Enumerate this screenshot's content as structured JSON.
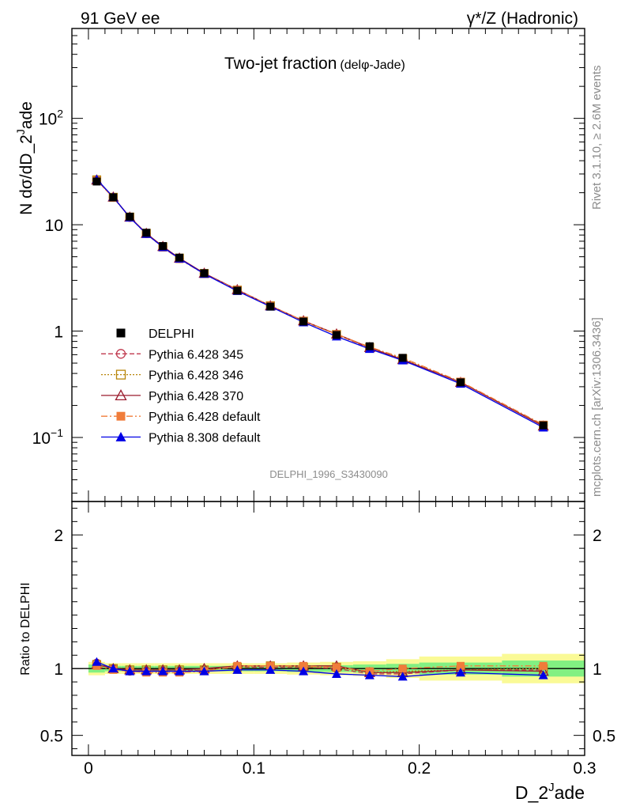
{
  "header": {
    "left": "91 GeV ee",
    "right_prefix": "γ*/Z",
    "right_suffix": " (Hadronic)"
  },
  "side_text": {
    "rivet": "Rivet 3.1.10, ≥ 2.6M events",
    "mcplots": "mcplots.cern.ch [arXiv:1306.3436]"
  },
  "analysis_id": "DELPHI_1996_S3430090",
  "chart_data": [
    {
      "type": "line",
      "title": "Two-jet fraction",
      "title_sub": "(delφ-Jade)",
      "ylabel": "N dσ/dD_2^Jade",
      "ylabel_parts": [
        "N dσ/dD_2",
        "J",
        "ade"
      ],
      "yscale": "log",
      "ylim": [
        0.025,
        700
      ],
      "xlim": [
        -0.01,
        0.3
      ],
      "ytick_labels": [
        {
          "value": 0.1,
          "base": "10",
          "exp": "−1"
        },
        {
          "value": 1,
          "base": "1",
          "exp": ""
        },
        {
          "value": 10,
          "base": "10",
          "exp": ""
        },
        {
          "value": 100,
          "base": "10",
          "exp": "2"
        }
      ],
      "legend_position": "lower-left",
      "x": [
        0.005,
        0.015,
        0.025,
        0.035,
        0.045,
        0.055,
        0.07,
        0.09,
        0.11,
        0.13,
        0.15,
        0.17,
        0.19,
        0.225,
        0.275
      ],
      "series": [
        {
          "name": "DELPHI",
          "color": "#000000",
          "marker": "square-filled",
          "line": "none",
          "values": [
            25.5,
            18.1,
            11.9,
            8.4,
            6.3,
            4.9,
            3.5,
            2.4,
            1.7,
            1.23,
            0.92,
            0.72,
            0.56,
            0.33,
            0.13
          ]
        },
        {
          "name": "Pythia 6.428 345",
          "color": "#c0394e",
          "marker": "circle-open",
          "line": "dashed",
          "values": [
            26.5,
            18.1,
            11.7,
            8.25,
            6.2,
            4.8,
            3.48,
            2.43,
            1.72,
            1.24,
            0.93,
            0.69,
            0.54,
            0.33,
            0.13
          ]
        },
        {
          "name": "Pythia 6.428 346",
          "color": "#b8860b",
          "marker": "square-open",
          "line": "dotted",
          "values": [
            26.4,
            18.1,
            11.8,
            8.3,
            6.2,
            4.85,
            3.48,
            2.43,
            1.73,
            1.24,
            0.93,
            0.7,
            0.55,
            0.33,
            0.13
          ]
        },
        {
          "name": "Pythia 6.428 370",
          "color": "#9b1c2e",
          "marker": "triangle-open",
          "line": "solid",
          "values": [
            26.3,
            18.2,
            11.8,
            8.3,
            6.25,
            4.85,
            3.5,
            2.45,
            1.73,
            1.25,
            0.94,
            0.7,
            0.54,
            0.33,
            0.128
          ]
        },
        {
          "name": "Pythia 6.428 default",
          "color": "#f07c3a",
          "marker": "square-filled",
          "line": "dashdot",
          "values": [
            26.0,
            18.0,
            11.7,
            8.2,
            6.1,
            4.75,
            3.45,
            2.44,
            1.73,
            1.25,
            0.935,
            0.71,
            0.56,
            0.335,
            0.132
          ]
        },
        {
          "name": "Pythia 8.308 default",
          "color": "#0000e6",
          "marker": "triangle-filled",
          "line": "solid",
          "values": [
            26.8,
            18.2,
            11.7,
            8.2,
            6.15,
            4.8,
            3.45,
            2.38,
            1.7,
            1.21,
            0.89,
            0.68,
            0.53,
            0.32,
            0.124
          ]
        }
      ]
    },
    {
      "type": "line",
      "ylabel": "Ratio to DELPHI",
      "xlabel": "D_2^Jade",
      "xlabel_parts": [
        "D_2",
        "J",
        "ade"
      ],
      "ylim": [
        0.35,
        2.25
      ],
      "xlim": [
        -0.01,
        0.3
      ],
      "yticks": [
        0.5,
        1,
        2
      ],
      "ytick_labels": [
        "0.5",
        "1",
        "2"
      ],
      "xticks": [
        0,
        0.1,
        0.2,
        0.3
      ],
      "xtick_labels": [
        "0",
        "0.1",
        "0.2",
        "0.3"
      ],
      "x": [
        0.005,
        0.015,
        0.025,
        0.035,
        0.045,
        0.055,
        0.07,
        0.09,
        0.11,
        0.13,
        0.15,
        0.17,
        0.19,
        0.225,
        0.275
      ],
      "band_edges": [
        0,
        0.01,
        0.02,
        0.03,
        0.04,
        0.05,
        0.06,
        0.08,
        0.1,
        0.12,
        0.14,
        0.16,
        0.18,
        0.2,
        0.25,
        0.3
      ],
      "band_inner": [
        0.03,
        0.02,
        0.02,
        0.02,
        0.02,
        0.02,
        0.02,
        0.02,
        0.02,
        0.025,
        0.025,
        0.03,
        0.035,
        0.045,
        0.06
      ],
      "band_outer": [
        0.05,
        0.04,
        0.04,
        0.04,
        0.04,
        0.04,
        0.04,
        0.04,
        0.04,
        0.045,
        0.05,
        0.055,
        0.07,
        0.09,
        0.11
      ],
      "band_colors": {
        "inner": "#82f082",
        "outer": "#fafa96"
      },
      "series": [
        {
          "name": "Pythia 6.428 345",
          "color": "#c0394e",
          "marker": "circle-open",
          "line": "dashed",
          "values": [
            1.04,
            1.0,
            0.98,
            0.98,
            0.98,
            0.98,
            0.99,
            1.01,
            1.01,
            1.01,
            1.0,
            0.96,
            0.96,
            0.99,
            0.99
          ]
        },
        {
          "name": "Pythia 6.428 346",
          "color": "#b8860b",
          "marker": "square-open",
          "line": "dotted",
          "values": [
            1.03,
            1.0,
            0.99,
            0.99,
            0.99,
            0.99,
            0.99,
            1.01,
            1.02,
            1.01,
            1.01,
            0.97,
            0.98,
            0.99,
            1.0
          ]
        },
        {
          "name": "Pythia 6.428 370",
          "color": "#9b1c2e",
          "marker": "triangle-open",
          "line": "solid",
          "values": [
            1.03,
            1.0,
            0.99,
            0.99,
            0.99,
            0.99,
            1.0,
            1.02,
            1.02,
            1.02,
            1.02,
            0.97,
            0.97,
            0.99,
            0.98
          ]
        },
        {
          "name": "Pythia 6.428 default",
          "color": "#f07c3a",
          "marker": "square-filled",
          "line": "dashdot",
          "values": [
            1.02,
            0.99,
            0.98,
            0.97,
            0.97,
            0.97,
            0.98,
            1.02,
            1.02,
            1.02,
            1.01,
            0.98,
            1.0,
            1.02,
            1.02
          ]
        },
        {
          "name": "Pythia 8.308 default",
          "color": "#0000e6",
          "marker": "triangle-filled",
          "line": "solid",
          "values": [
            1.05,
            1.0,
            0.98,
            0.98,
            0.98,
            0.98,
            0.98,
            0.99,
            0.99,
            0.98,
            0.96,
            0.95,
            0.94,
            0.97,
            0.95
          ]
        }
      ]
    }
  ]
}
